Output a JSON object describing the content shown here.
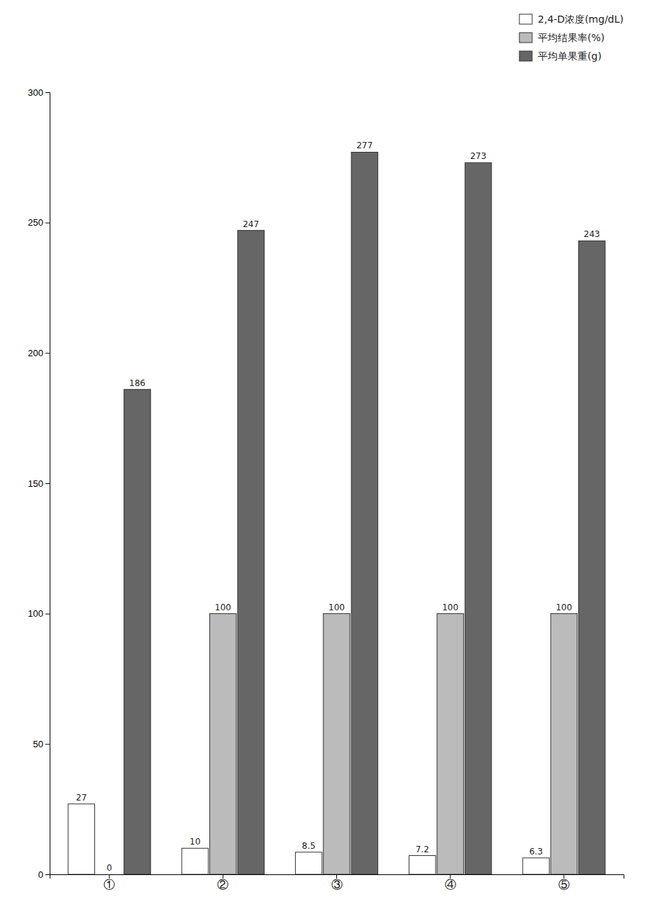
{
  "chart_data": {
    "type": "bar",
    "categories": [
      "①",
      "②",
      "③",
      "④",
      "⑤"
    ],
    "series": [
      {
        "name": "2,4-D浓度(mg/dL)",
        "color": "#ffffff",
        "values": [
          27,
          10,
          8.5,
          7.2,
          6.3
        ]
      },
      {
        "name": "平均结果率(%)",
        "color": "#bbbbbb",
        "values": [
          0,
          100,
          100,
          100,
          100
        ]
      },
      {
        "name": "平均单果重(g)",
        "color": "#666666",
        "values": [
          186,
          247,
          277,
          273,
          243
        ]
      }
    ],
    "ylim": [
      0,
      300
    ],
    "yticks": [
      0,
      50,
      100,
      150,
      200,
      250,
      300
    ],
    "data_labels": true,
    "legend": "upper right"
  }
}
